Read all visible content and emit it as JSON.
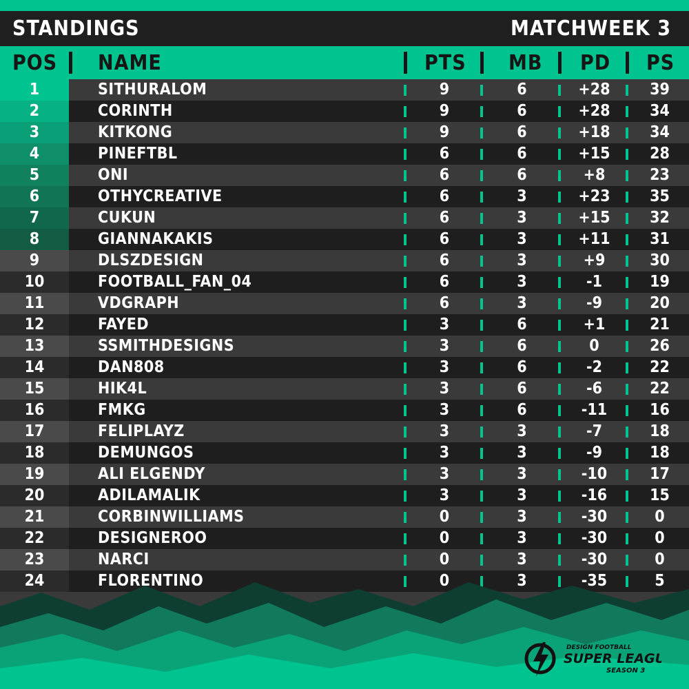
{
  "header": {
    "title": "STANDINGS",
    "matchweek": "MATCHWEEK 3"
  },
  "columns": {
    "pos": "POS",
    "name": "NAME",
    "pts": "PTS",
    "mb": "MB",
    "pd": "PD",
    "ps": "PS"
  },
  "colors": {
    "accent": "#00c48f",
    "row_light": "#3a3a3a",
    "row_dark": "#1e1e1e"
  },
  "rows": [
    {
      "pos": "1",
      "name": "SITHURALOM",
      "pts": "9",
      "mb": "6",
      "pd": "+28",
      "ps": "39"
    },
    {
      "pos": "2",
      "name": "CORINTH",
      "pts": "9",
      "mb": "6",
      "pd": "+28",
      "ps": "34"
    },
    {
      "pos": "3",
      "name": "KITKONG",
      "pts": "9",
      "mb": "6",
      "pd": "+18",
      "ps": "34"
    },
    {
      "pos": "4",
      "name": "PINEFTBL",
      "pts": "6",
      "mb": "6",
      "pd": "+15",
      "ps": "28"
    },
    {
      "pos": "5",
      "name": "ONI",
      "pts": "6",
      "mb": "6",
      "pd": "+8",
      "ps": "23"
    },
    {
      "pos": "6",
      "name": "OTHYCREATIVE",
      "pts": "6",
      "mb": "3",
      "pd": "+23",
      "ps": "35"
    },
    {
      "pos": "7",
      "name": "CUKUN",
      "pts": "6",
      "mb": "3",
      "pd": "+15",
      "ps": "32"
    },
    {
      "pos": "8",
      "name": "GIANNAKAKIS",
      "pts": "6",
      "mb": "3",
      "pd": "+11",
      "ps": "31"
    },
    {
      "pos": "9",
      "name": "DLSZDESIGN",
      "pts": "6",
      "mb": "3",
      "pd": "+9",
      "ps": "30"
    },
    {
      "pos": "10",
      "name": "FOOTBALL_FAN_04",
      "pts": "6",
      "mb": "3",
      "pd": "-1",
      "ps": "19"
    },
    {
      "pos": "11",
      "name": "VDGRAPH",
      "pts": "6",
      "mb": "3",
      "pd": "-9",
      "ps": "20"
    },
    {
      "pos": "12",
      "name": "FAYED",
      "pts": "3",
      "mb": "6",
      "pd": "+1",
      "ps": "21"
    },
    {
      "pos": "13",
      "name": "SSMITHDESIGNS",
      "pts": "3",
      "mb": "6",
      "pd": "0",
      "ps": "26"
    },
    {
      "pos": "14",
      "name": "DAN808",
      "pts": "3",
      "mb": "6",
      "pd": "-2",
      "ps": "22"
    },
    {
      "pos": "15",
      "name": "HIK4L",
      "pts": "3",
      "mb": "6",
      "pd": "-6",
      "ps": "22"
    },
    {
      "pos": "16",
      "name": "FMKG",
      "pts": "3",
      "mb": "6",
      "pd": "-11",
      "ps": "16"
    },
    {
      "pos": "17",
      "name": "FELIPLAYZ",
      "pts": "3",
      "mb": "3",
      "pd": "-7",
      "ps": "18"
    },
    {
      "pos": "18",
      "name": "DEMUNGOS",
      "pts": "3",
      "mb": "3",
      "pd": "-9",
      "ps": "18"
    },
    {
      "pos": "19",
      "name": "ALI ELGENDY",
      "pts": "3",
      "mb": "3",
      "pd": "-10",
      "ps": "17"
    },
    {
      "pos": "20",
      "name": "ADILAMALIK",
      "pts": "3",
      "mb": "3",
      "pd": "-16",
      "ps": "15"
    },
    {
      "pos": "21",
      "name": "CORBINWILLIAMS",
      "pts": "0",
      "mb": "3",
      "pd": "-30",
      "ps": "0"
    },
    {
      "pos": "22",
      "name": "DESIGNEROO",
      "pts": "0",
      "mb": "3",
      "pd": "-30",
      "ps": "0"
    },
    {
      "pos": "23",
      "name": "NARCI",
      "pts": "0",
      "mb": "3",
      "pd": "-30",
      "ps": "0"
    },
    {
      "pos": "24",
      "name": "FLORENTINO",
      "pts": "0",
      "mb": "3",
      "pd": "-35",
      "ps": "5"
    }
  ],
  "logo": {
    "line1": "DESIGN FOOTBALL",
    "line2": "SUPER LEAGUE",
    "line3": "SEASON 3",
    "icon": "lightning-ball-icon"
  }
}
